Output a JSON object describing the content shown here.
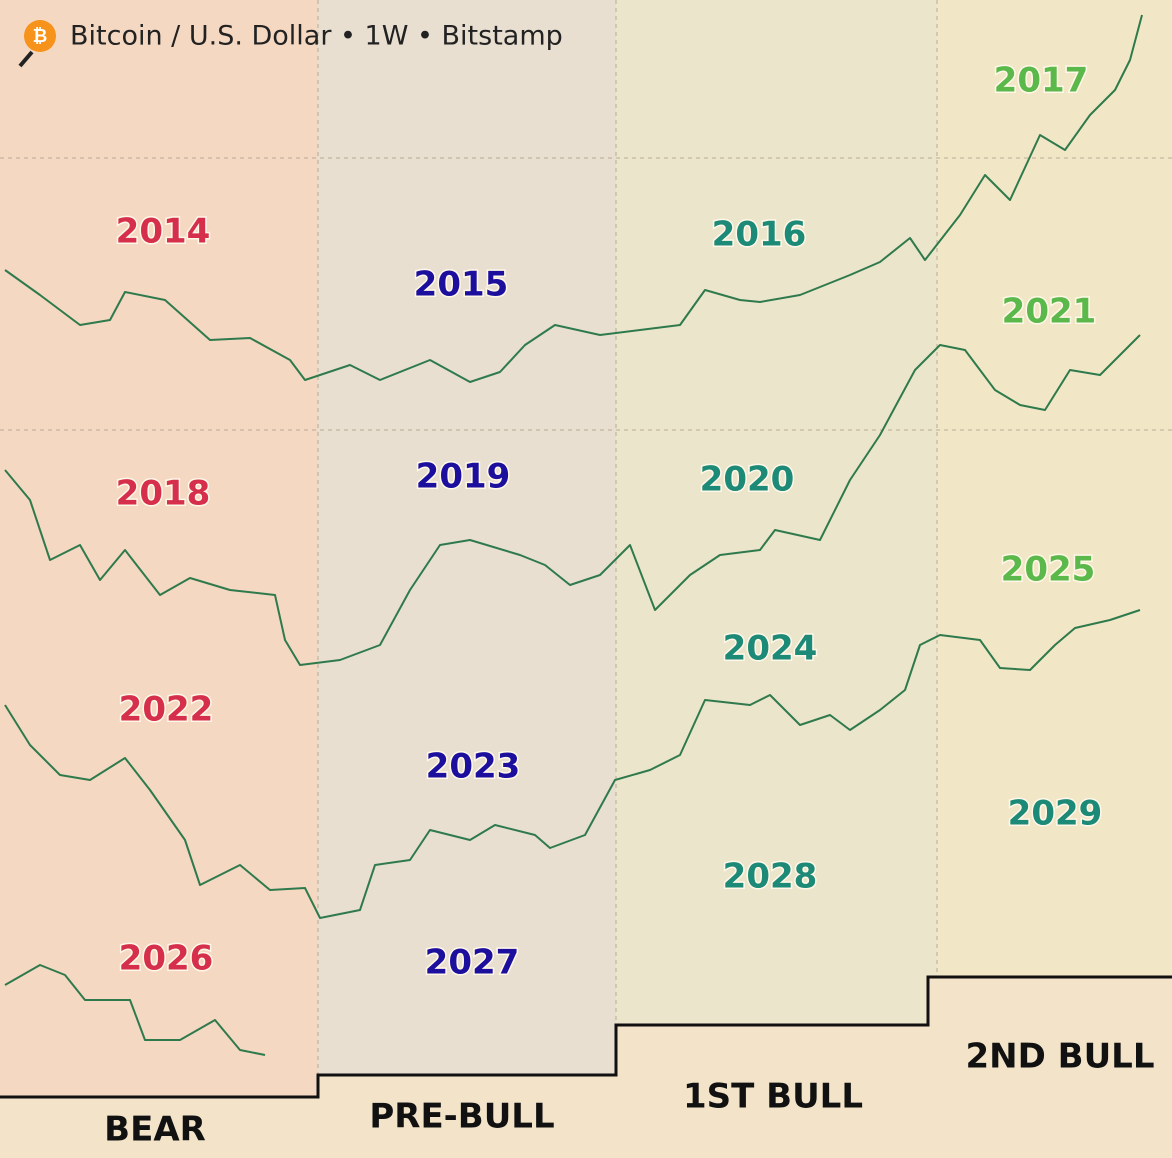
{
  "header": {
    "title": "Bitcoin / U.S. Dollar • 1W • Bitstamp"
  },
  "years": [
    {
      "label": "2014"
    },
    {
      "label": "2015"
    },
    {
      "label": "2016"
    },
    {
      "label": "2017"
    },
    {
      "label": "2018"
    },
    {
      "label": "2019"
    },
    {
      "label": "2020"
    },
    {
      "label": "2021"
    },
    {
      "label": "2022"
    },
    {
      "label": "2023"
    },
    {
      "label": "2024"
    },
    {
      "label": "2025"
    },
    {
      "label": "2026"
    },
    {
      "label": "2027"
    },
    {
      "label": "2028"
    },
    {
      "label": "2029"
    }
  ],
  "phases": [
    {
      "label": "BEAR"
    },
    {
      "label": "PRE-BULL"
    },
    {
      "label": "1ST BULL"
    },
    {
      "label": "2ND BULL"
    }
  ]
}
